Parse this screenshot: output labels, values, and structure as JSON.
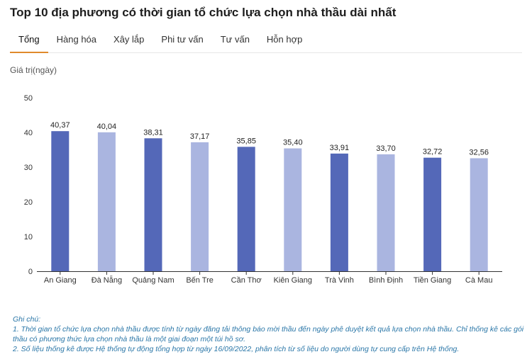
{
  "title": "Top 10 địa phương có thời gian tổ chức lựa chọn nhà thầu dài nhất",
  "tabs": [
    {
      "label": "Tổng",
      "active": true
    },
    {
      "label": "Hàng hóa",
      "active": false
    },
    {
      "label": "Xây lắp",
      "active": false
    },
    {
      "label": "Phi tư vấn",
      "active": false
    },
    {
      "label": "Tư vấn",
      "active": false
    },
    {
      "label": "Hỗn hợp",
      "active": false
    }
  ],
  "colors": {
    "accent_tab": "#e08a2c",
    "bar_dark": "#5468b8",
    "bar_light": "#aab5e0",
    "note_text": "#2b77a8"
  },
  "chart_data": {
    "type": "bar",
    "ylabel": "Giá trị(ngày)",
    "xlabel": "",
    "ylim": [
      0,
      50
    ],
    "yticks": [
      0,
      10,
      20,
      30,
      40,
      50
    ],
    "categories": [
      "An Giang",
      "Đà Nẵng",
      "Quảng Nam",
      "Bến Tre",
      "Cần Thơ",
      "Kiên Giang",
      "Trà Vinh",
      "Bình Định",
      "Tiền Giang",
      "Cà Mau"
    ],
    "values": [
      40.37,
      40.04,
      38.31,
      37.17,
      35.85,
      35.4,
      33.91,
      33.7,
      32.72,
      32.56
    ],
    "value_labels": [
      "40,37",
      "40,04",
      "38,31",
      "37,17",
      "35,85",
      "35,40",
      "33,91",
      "33,70",
      "32,72",
      "32,56"
    ],
    "bar_shades": [
      "dark",
      "light",
      "dark",
      "light",
      "dark",
      "light",
      "dark",
      "light",
      "dark",
      "light"
    ],
    "grid": false,
    "legend": "none"
  },
  "notes": {
    "heading": "Ghi chú:",
    "line1": "1. Thời gian tổ chức lựa chọn nhà thầu được tính từ ngày đăng tải thông báo mời thầu đến ngày phê duyệt kết quả lựa chọn nhà thầu. Chỉ thống kê các gói thầu có phương thức lựa chọn nhà thầu là một giai đoạn một túi hồ sơ.",
    "line2": "2. Số liệu thống kê được Hệ thống tự động tổng hợp từ ngày 16/09/2022, phân tích từ số liệu do người dùng tự cung cấp trên Hệ thống."
  }
}
